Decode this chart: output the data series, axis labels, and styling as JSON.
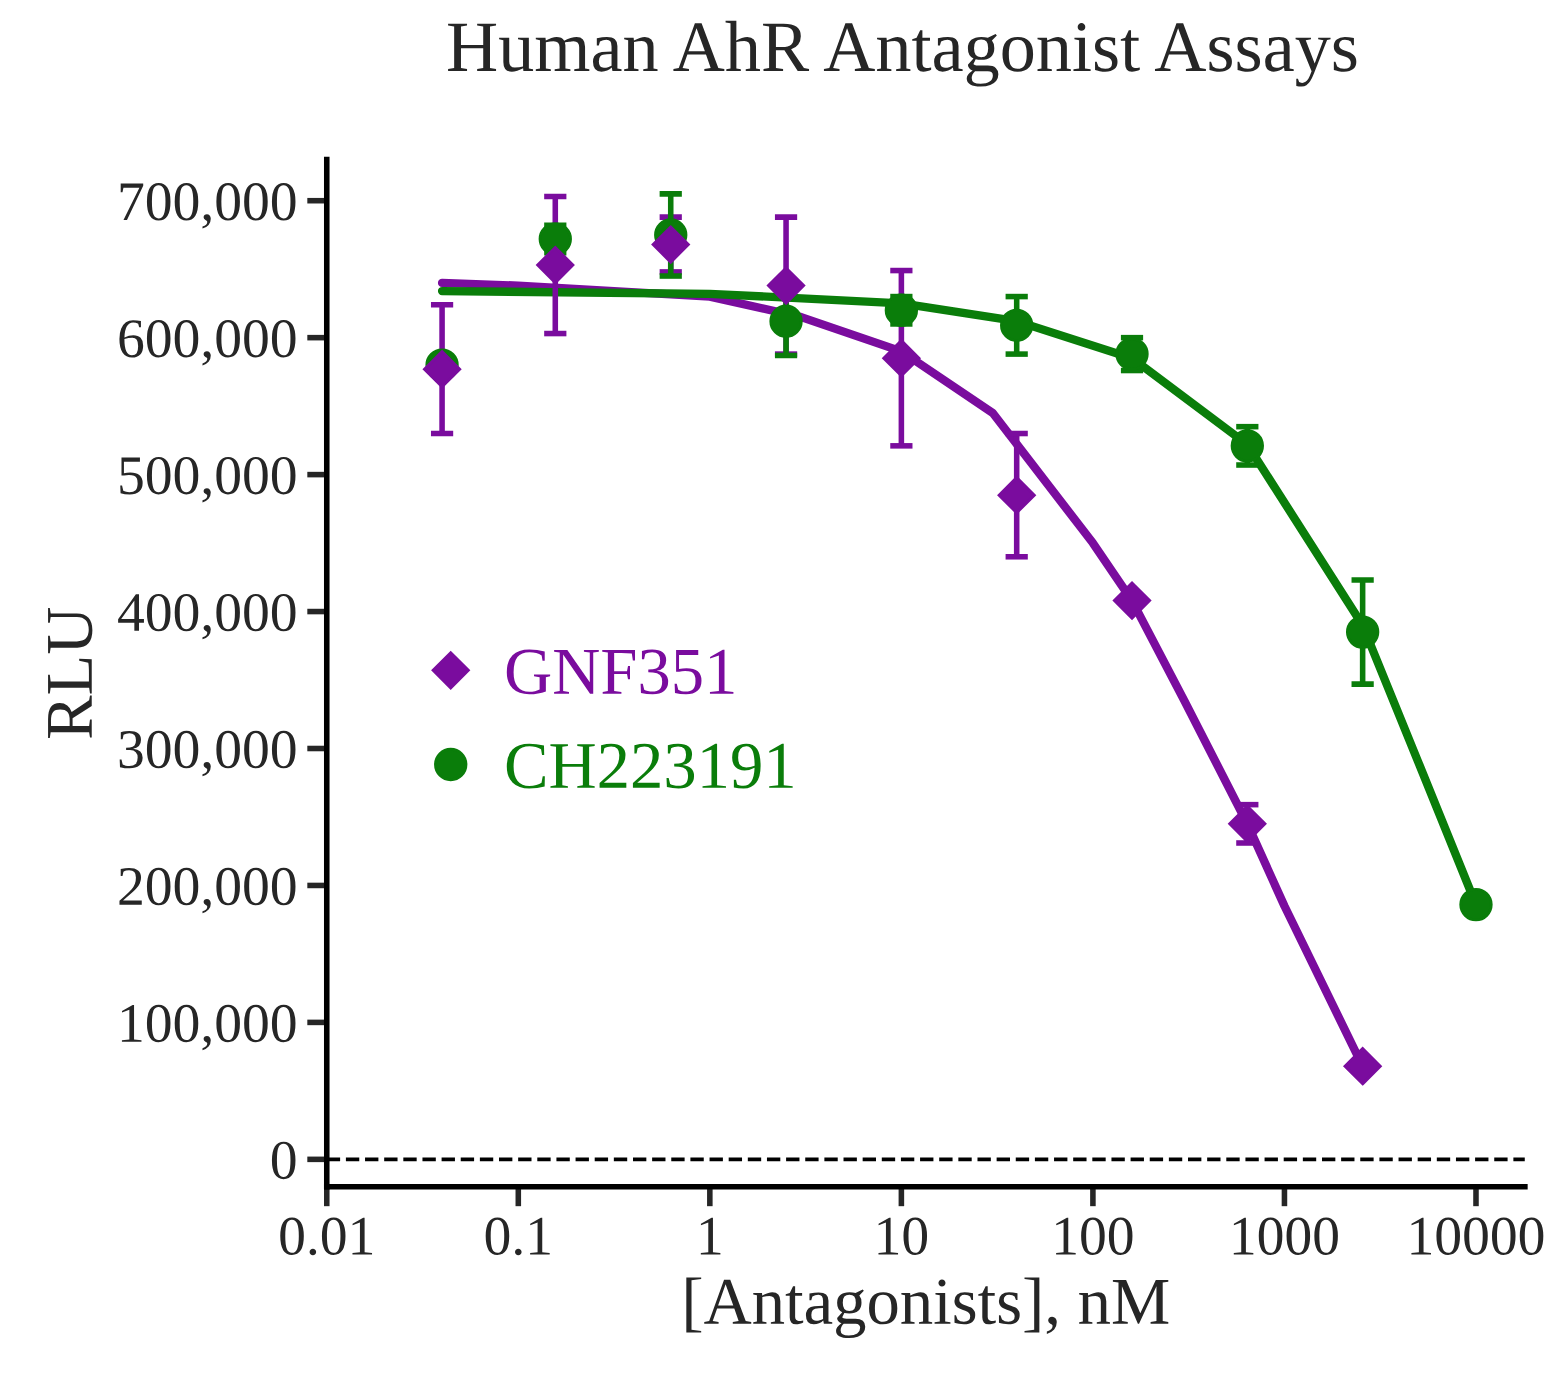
{
  "chart_data": {
    "type": "scatter",
    "title": "Human AhR Antagonist Assays",
    "xlabel": "[Antagonists], nM",
    "ylabel": "RLU",
    "log": "x",
    "xlim": [
      0.01,
      18000
    ],
    "xticks": [
      {
        "value": 0.01,
        "label": "0.01"
      },
      {
        "value": 0.1,
        "label": "0.1"
      },
      {
        "value": 1,
        "label": "1"
      },
      {
        "value": 10,
        "label": "10"
      },
      {
        "value": 100,
        "label": "100"
      },
      {
        "value": 1000,
        "label": "1000"
      },
      {
        "value": 10000,
        "label": "10000"
      }
    ],
    "ylim": [
      -20000,
      730000
    ],
    "yticks": [
      {
        "value": 0,
        "label": "0"
      },
      {
        "value": 100000,
        "label": "100,000"
      },
      {
        "value": 200000,
        "label": "200,000"
      },
      {
        "value": 300000,
        "label": "300,000"
      },
      {
        "value": 400000,
        "label": "400,000"
      },
      {
        "value": 500000,
        "label": "500,000"
      },
      {
        "value": 600000,
        "label": "600,000"
      },
      {
        "value": 700000,
        "label": "700,000"
      }
    ],
    "grid": false,
    "legend": "left",
    "ref_lines": [
      {
        "axis": "y",
        "value": 0,
        "line_style": "dashed",
        "color": "#000000"
      }
    ],
    "series": [
      {
        "type": "line",
        "color": "#7a0c9e",
        "marker": "none",
        "x": [
          0.04,
          0.1,
          1,
          3,
          10,
          30,
          100,
          160,
          300,
          640,
          1000,
          2560
        ],
        "values": [
          640000,
          638000,
          630000,
          615000,
          590000,
          545000,
          450000,
          408000,
          335000,
          245000,
          185000,
          68000
        ]
      },
      {
        "type": "line",
        "color": "#0a7d0a",
        "marker": "none",
        "x": [
          0.04,
          1,
          10,
          40,
          160,
          640,
          2560,
          5000,
          10000
        ],
        "values": [
          634000,
          632000,
          625000,
          612000,
          585000,
          522000,
          390000,
          290000,
          186000
        ]
      },
      {
        "name": "GNF351",
        "marker": "diamond",
        "color": "#7a0c9e",
        "x": [
          0.04,
          0.156,
          0.625,
          2.5,
          10,
          40,
          160,
          640,
          2560
        ],
        "values": [
          577000,
          653000,
          668000,
          638000,
          585000,
          485000,
          408000,
          245000,
          68000
        ],
        "errors": [
          47000,
          50000,
          20000,
          50000,
          64000,
          45000,
          null,
          14000,
          null
        ]
      },
      {
        "name": "CH223191",
        "marker": "circle",
        "color": "#0a7d0a",
        "x": [
          0.04,
          0.156,
          0.625,
          2.5,
          10,
          40,
          160,
          640,
          2560,
          10000
        ],
        "values": [
          580000,
          672000,
          675000,
          612000,
          620000,
          609000,
          588000,
          521000,
          385000,
          186000
        ],
        "errors": [
          null,
          10000,
          30000,
          25000,
          10000,
          21000,
          12000,
          14000,
          38000,
          null
        ]
      }
    ]
  }
}
